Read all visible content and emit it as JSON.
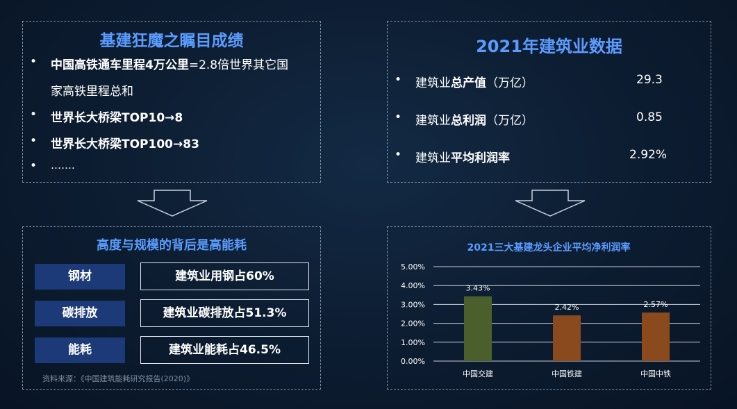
{
  "top_left": {
    "title": "基建狂魔之瞩目成绩",
    "items": [
      {
        "bold": "中国高铁通车里程4万公里",
        "rest": "=2.8倍世界其它国"
      },
      {
        "bold": "",
        "rest": "家高铁里程总和"
      },
      {
        "bold": "世界长大桥梁TOP10→8",
        "rest": ""
      },
      {
        "bold": "世界长大桥梁TOP100→83",
        "rest": ""
      },
      {
        "bold": "",
        "rest": "……."
      }
    ]
  },
  "top_right": {
    "title": "2021年建筑业数据",
    "rows": [
      {
        "pre": "建筑业",
        "bold": "总产值",
        "post": "（万亿）",
        "value": "29.3"
      },
      {
        "pre": "建筑业",
        "bold": "总利润",
        "post": "（万亿）",
        "value": "0.85"
      },
      {
        "pre": "建筑业",
        "bold": "平均利润率",
        "post": "",
        "value": "2.92%"
      }
    ]
  },
  "bottom_left": {
    "title": "高度与规模的背后是高能耗",
    "rows": [
      {
        "label": "钢材",
        "value": "建筑业用钢占60%"
      },
      {
        "label": "碳排放",
        "value": "建筑业碳排放占51.3%"
      },
      {
        "label": "能耗",
        "value": "建筑业能耗占46.5%"
      }
    ],
    "source": "资料来源：《中国建筑能耗研究报告(2020)》"
  },
  "colors": {
    "title_blue": "#5b9cff",
    "label_bg": "#1c3a78",
    "bar_green": "#4a5f2c",
    "bar_brown": "#8a4a1e"
  },
  "chart_data": {
    "type": "bar",
    "title": "2021三大基建龙头企业平均净利润率",
    "categories": [
      "中国交建",
      "中国铁建",
      "中国中铁"
    ],
    "values": [
      3.43,
      2.42,
      2.57
    ],
    "value_labels": [
      "3.43%",
      "2.42%",
      "2.57%"
    ],
    "y_ticks": [
      "0.00%",
      "1.00%",
      "2.00%",
      "3.00%",
      "4.00%",
      "5.00%"
    ],
    "ylim": [
      0,
      5
    ],
    "grid": true,
    "bar_colors": [
      "#4a5f2c",
      "#8a4a1e",
      "#8a4a1e"
    ]
  }
}
